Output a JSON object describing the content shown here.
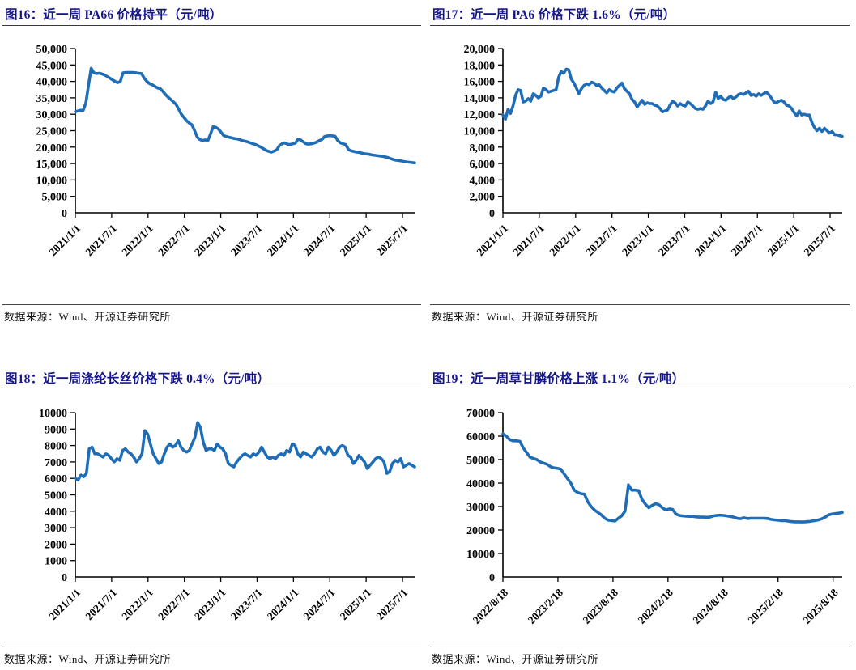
{
  "source_note": "数据来源：Wind、开源证券研究所",
  "colors": {
    "line": "#1e6db6",
    "title": "#16168b",
    "axis": "#000000",
    "rule": "#3a3a3a"
  },
  "chart_data": [
    {
      "type": "line",
      "title": "图16：近一周 PA66 价格持平（元/吨）",
      "unit": "元/吨",
      "ylim": [
        0,
        50000
      ],
      "ystep": 5000,
      "y_format": "comma",
      "x_ticks": [
        "2021/1/1",
        "2021/7/1",
        "2022/1/1",
        "2022/7/1",
        "2023/1/1",
        "2023/7/1",
        "2024/1/1",
        "2024/7/1",
        "2025/1/1",
        "2025/7/1"
      ],
      "x_span_units": 56,
      "x_tick_step_units": 6,
      "grid": false,
      "legend": null,
      "values": [
        30800,
        31000,
        31200,
        31200,
        33500,
        39000,
        44000,
        42600,
        42400,
        42500,
        42300,
        42000,
        41500,
        41000,
        40500,
        40000,
        39600,
        40000,
        42600,
        42700,
        42700,
        42700,
        42700,
        42600,
        42500,
        42400,
        41000,
        40000,
        39300,
        39000,
        38500,
        38000,
        37800,
        37000,
        36000,
        35200,
        34500,
        33800,
        33000,
        31500,
        30000,
        29000,
        28000,
        27300,
        26800,
        25000,
        23000,
        22300,
        22000,
        22200,
        22000,
        24000,
        26200,
        26000,
        25500,
        24500,
        23500,
        23200,
        23000,
        22800,
        22600,
        22500,
        22300,
        22000,
        21800,
        21600,
        21300,
        21000,
        20800,
        20400,
        20000,
        19500,
        19000,
        18700,
        18500,
        18800,
        19200,
        20500,
        21000,
        21300,
        20900,
        20800,
        21000,
        21200,
        22400,
        22200,
        21600,
        21000,
        20900,
        21000,
        21200,
        21500,
        22000,
        22300,
        23200,
        23400,
        23500,
        23400,
        23300,
        22000,
        21300,
        21000,
        20800,
        19300,
        18900,
        18700,
        18500,
        18400,
        18200,
        18000,
        17900,
        17800,
        17600,
        17500,
        17400,
        17300,
        17200,
        17000,
        16800,
        16500,
        16200,
        16000,
        15900,
        15800,
        15600,
        15500,
        15400,
        15300,
        15200
      ]
    },
    {
      "type": "line",
      "title": "图17：近一周 PA6 价格下跌 1.6%（元/吨）",
      "unit": "元/吨",
      "ylim": [
        0,
        20000
      ],
      "ystep": 2000,
      "y_format": "comma",
      "x_ticks": [
        "2021/1/1",
        "2021/7/1",
        "2022/1/1",
        "2022/7/1",
        "2023/1/1",
        "2023/7/1",
        "2024/1/1",
        "2024/7/1",
        "2025/1/1",
        "2025/7/1"
      ],
      "x_span_units": 56,
      "x_tick_step_units": 6,
      "grid": false,
      "legend": null,
      "values": [
        11900,
        11400,
        12600,
        12100,
        13000,
        14300,
        15000,
        14900,
        13500,
        13600,
        13900,
        13600,
        14500,
        14300,
        14000,
        14200,
        15200,
        15000,
        14700,
        14800,
        14900,
        15000,
        16500,
        17200,
        17000,
        17500,
        17400,
        16300,
        15800,
        15200,
        14500,
        15100,
        15500,
        15700,
        15600,
        15900,
        15800,
        15500,
        15600,
        15200,
        14900,
        14600,
        15000,
        14800,
        14700,
        15200,
        15500,
        15800,
        15100,
        14800,
        14500,
        13800,
        13500,
        12900,
        13300,
        13700,
        13200,
        13400,
        13300,
        13300,
        13100,
        13000,
        12700,
        12300,
        12400,
        12500,
        13100,
        13600,
        13400,
        13000,
        13300,
        13100,
        13000,
        13500,
        13300,
        13000,
        12700,
        12600,
        12700,
        12600,
        13000,
        13600,
        13300,
        13500,
        14700,
        13900,
        14200,
        13800,
        13700,
        14000,
        14200,
        13900,
        14100,
        14400,
        14500,
        14400,
        14600,
        14800,
        14300,
        14400,
        14200,
        14500,
        14300,
        14500,
        14700,
        14400,
        14000,
        13500,
        13400,
        13600,
        13700,
        13500,
        13100,
        13000,
        12700,
        12200,
        11800,
        12400,
        11900,
        12000,
        11900,
        11900,
        11000,
        10400,
        10000,
        10300,
        9900,
        10300,
        10000,
        9700,
        9900,
        9500,
        9500,
        9400,
        9300
      ]
    },
    {
      "type": "line",
      "title": "图18：近一周涤纶长丝价格下跌 0.4%（元/吨）",
      "unit": "元/吨",
      "ylim": [
        0,
        10000
      ],
      "ystep": 1000,
      "y_format": "plain",
      "x_ticks": [
        "2021/1/1",
        "2021/7/1",
        "2022/1/1",
        "2022/7/1",
        "2023/1/1",
        "2023/7/1",
        "2024/1/1",
        "2024/7/1",
        "2025/1/1",
        "2025/7/1"
      ],
      "x_span_units": 56,
      "x_tick_step_units": 6,
      "grid": false,
      "legend": null,
      "values": [
        6000,
        5900,
        6200,
        6100,
        6300,
        7800,
        7900,
        7500,
        7500,
        7400,
        7300,
        7500,
        7400,
        7200,
        7000,
        7200,
        7100,
        7700,
        7800,
        7600,
        7500,
        7300,
        7000,
        7200,
        7500,
        8900,
        8700,
        8100,
        7500,
        7200,
        6900,
        7000,
        7500,
        7900,
        8100,
        7900,
        8000,
        8300,
        7900,
        7700,
        7600,
        7700,
        8100,
        8500,
        9400,
        9100,
        8200,
        7700,
        7800,
        7800,
        7700,
        8100,
        7900,
        7800,
        7500,
        6900,
        6800,
        6700,
        7000,
        7200,
        7400,
        7500,
        7400,
        7300,
        7500,
        7400,
        7600,
        7900,
        7600,
        7300,
        7200,
        7300,
        7200,
        7400,
        7500,
        7400,
        7700,
        7600,
        8100,
        8000,
        7500,
        7300,
        7600,
        7500,
        7400,
        7300,
        7500,
        7800,
        7900,
        7600,
        7500,
        7900,
        7700,
        7400,
        7600,
        7900,
        8000,
        7900,
        7400,
        7300,
        6900,
        7100,
        7400,
        7200,
        7000,
        6600,
        6800,
        7000,
        7200,
        7300,
        7200,
        7000,
        6300,
        6400,
        6900,
        7100,
        7000,
        7200,
        6700,
        6800,
        6900,
        6800,
        6700
      ]
    },
    {
      "type": "line",
      "title": "图19：近一周草甘膦价格上涨 1.1%（元/吨）",
      "unit": "元/吨",
      "ylim": [
        0,
        70000
      ],
      "ystep": 10000,
      "y_format": "plain",
      "x_ticks": [
        "2022/8/18",
        "2023/2/18",
        "2023/8/18",
        "2024/2/18",
        "2024/8/18",
        "2025/2/18",
        "2025/8/18"
      ],
      "x_span_units": 37,
      "x_tick_step_units": 6,
      "grid": false,
      "legend": null,
      "values": [
        61000,
        60000,
        58500,
        58000,
        58000,
        57800,
        55000,
        53000,
        51000,
        50500,
        50000,
        49000,
        48500,
        48000,
        47000,
        46500,
        46300,
        46000,
        44000,
        42000,
        40000,
        37000,
        36000,
        35500,
        35300,
        32000,
        30000,
        28500,
        27500,
        26500,
        25000,
        24200,
        24000,
        23800,
        25000,
        26000,
        28000,
        39200,
        37000,
        37000,
        36800,
        33000,
        31000,
        29500,
        30500,
        31200,
        30800,
        29500,
        28500,
        29000,
        28800,
        26800,
        26200,
        26000,
        25900,
        25800,
        25800,
        25600,
        25500,
        25500,
        25400,
        25500,
        26000,
        26200,
        26300,
        26200,
        26000,
        25800,
        25500,
        25000,
        24800,
        25200,
        24900,
        25000,
        25000,
        25000,
        25000,
        25000,
        24900,
        24500,
        24300,
        24200,
        24000,
        24000,
        23800,
        23600,
        23500,
        23500,
        23400,
        23500,
        23600,
        23800,
        24000,
        24300,
        24800,
        25500,
        26500,
        26800,
        27000,
        27200,
        27500
      ]
    }
  ]
}
